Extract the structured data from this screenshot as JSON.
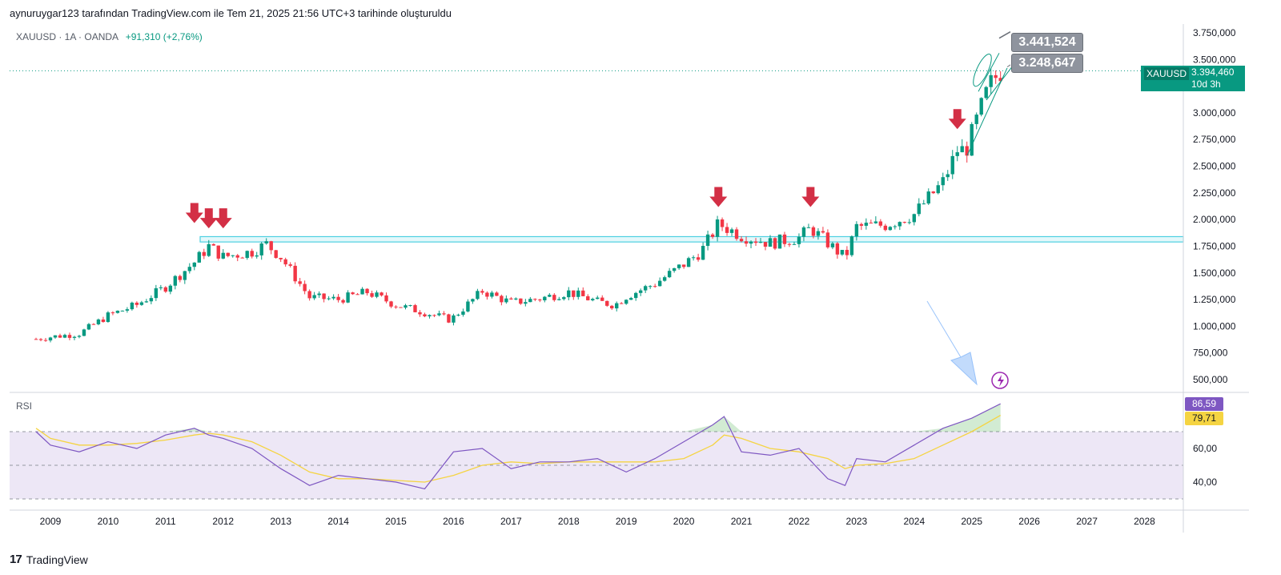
{
  "caption": "aynuruygar123 tarafından TradingView.com ile Tem 21, 2025 21:56 UTC+3 tarihinde oluşturuldu",
  "legend": {
    "symbol_line": "XAUUSD · 1A · OANDA",
    "change": "+91,310 (+2,76%)"
  },
  "price_label": {
    "symbol": "XAUUSD",
    "value": "3.394,460",
    "countdown": "10d 3h"
  },
  "annotation_boxes": [
    "3.441,524",
    "3.248,647"
  ],
  "rsi": {
    "title": "RSI",
    "rsi_value": "86,59",
    "ma_value": "79,71"
  },
  "brand": {
    "logo": "17",
    "name": "TradingView"
  },
  "colors": {
    "up": "#089981",
    "down": "#f23645",
    "arrow": "#d32f45",
    "support": "#4dd0e1",
    "rsi_line": "#7e57c2",
    "rsi_ma": "#f5d442",
    "rsi_band": "#ede7f6"
  },
  "icons": [
    "arrow-down-icon",
    "lightning-icon",
    "tradingview-logo-icon"
  ],
  "chart_data": {
    "type": "candlestick",
    "symbol": "XAUUSD",
    "timeframe": "1A",
    "x_axis_years": [
      "2009",
      "2010",
      "2011",
      "2012",
      "2013",
      "2014",
      "2015",
      "2016",
      "2017",
      "2018",
      "2019",
      "2020",
      "2021",
      "2022",
      "2023",
      "2024",
      "2025",
      "2026",
      "2027",
      "2028"
    ],
    "y_axis": {
      "ticks": [
        "3.750,000",
        "3.500,000",
        "3.250,000",
        "3.000,000",
        "2.750,000",
        "2.500,000",
        "2.250,000",
        "2.000,000",
        "1.750,000",
        "1.500,000",
        "1.250,000",
        "1.000,000",
        "750,000",
        "500,000"
      ],
      "ylim": [
        390,
        3790
      ]
    },
    "close_series_approx": {
      "x": [
        "2008.75",
        "2009",
        "2009.5",
        "2010",
        "2010.5",
        "2011",
        "2011.5",
        "2011.75",
        "2012",
        "2012.5",
        "2012.75",
        "2013",
        "2013.5",
        "2014",
        "2014.5",
        "2015",
        "2015.5",
        "2015.95",
        "2016.5",
        "2017",
        "2017.5",
        "2018",
        "2018.5",
        "2018.8",
        "2019",
        "2019.5",
        "2020",
        "2020.3",
        "2020.6",
        "2021",
        "2021.5",
        "2022",
        "2022.2",
        "2022.5",
        "2022.8",
        "2023",
        "2023.5",
        "2024",
        "2024.5",
        "2024.75",
        "2024.9",
        "2025",
        "2025.3",
        "2025.5"
      ],
      "y": [
        880,
        900,
        930,
        1100,
        1200,
        1370,
        1600,
        1750,
        1650,
        1700,
        1770,
        1650,
        1270,
        1250,
        1320,
        1200,
        1130,
        1060,
        1330,
        1220,
        1260,
        1320,
        1230,
        1200,
        1280,
        1400,
        1580,
        1700,
        1960,
        1850,
        1780,
        1830,
        1920,
        1780,
        1640,
        1930,
        1950,
        2050,
        2350,
        2650,
        2650,
        2800,
        3250,
        3394
      ]
    },
    "support_zone": [
      1790,
      1840
    ],
    "sell_arrows_approx": {
      "x": [
        "2011.5",
        "2011.75",
        "2012",
        "2020.6",
        "2022.2",
        "2024.75"
      ],
      "price_above": [
        1900,
        1850,
        1850,
        2050,
        2050,
        2780
      ]
    },
    "rsi_series": {
      "axis_ticks": [
        "60,00",
        "40,00"
      ],
      "levels": [
        70,
        50,
        30
      ],
      "x": [
        "2008.75",
        "2009",
        "2009.5",
        "2010",
        "2010.5",
        "2011",
        "2011.5",
        "2011.75",
        "2012",
        "2012.5",
        "2013",
        "2013.5",
        "2014",
        "2014.5",
        "2015",
        "2015.5",
        "2016",
        "2016.5",
        "2017",
        "2017.5",
        "2018",
        "2018.5",
        "2019",
        "2019.5",
        "2020",
        "2020.5",
        "2020.7",
        "2021",
        "2021.5",
        "2022",
        "2022.5",
        "2022.8",
        "2023",
        "2023.5",
        "2024",
        "2024.5",
        "2025",
        "2025.5"
      ],
      "rsi": [
        70,
        62,
        58,
        64,
        60,
        68,
        72,
        68,
        66,
        60,
        48,
        38,
        44,
        42,
        40,
        36,
        58,
        60,
        48,
        52,
        52,
        54,
        46,
        54,
        64,
        74,
        79,
        58,
        56,
        60,
        42,
        38,
        54,
        52,
        62,
        72,
        78,
        86.59
      ],
      "ma": [
        72,
        66,
        62,
        62,
        63,
        65,
        68,
        69,
        68,
        64,
        56,
        46,
        42,
        42,
        41,
        40,
        44,
        50,
        52,
        51,
        52,
        52,
        52,
        52,
        54,
        62,
        68,
        66,
        60,
        58,
        54,
        48,
        50,
        51,
        54,
        62,
        70,
        79.71
      ]
    }
  }
}
